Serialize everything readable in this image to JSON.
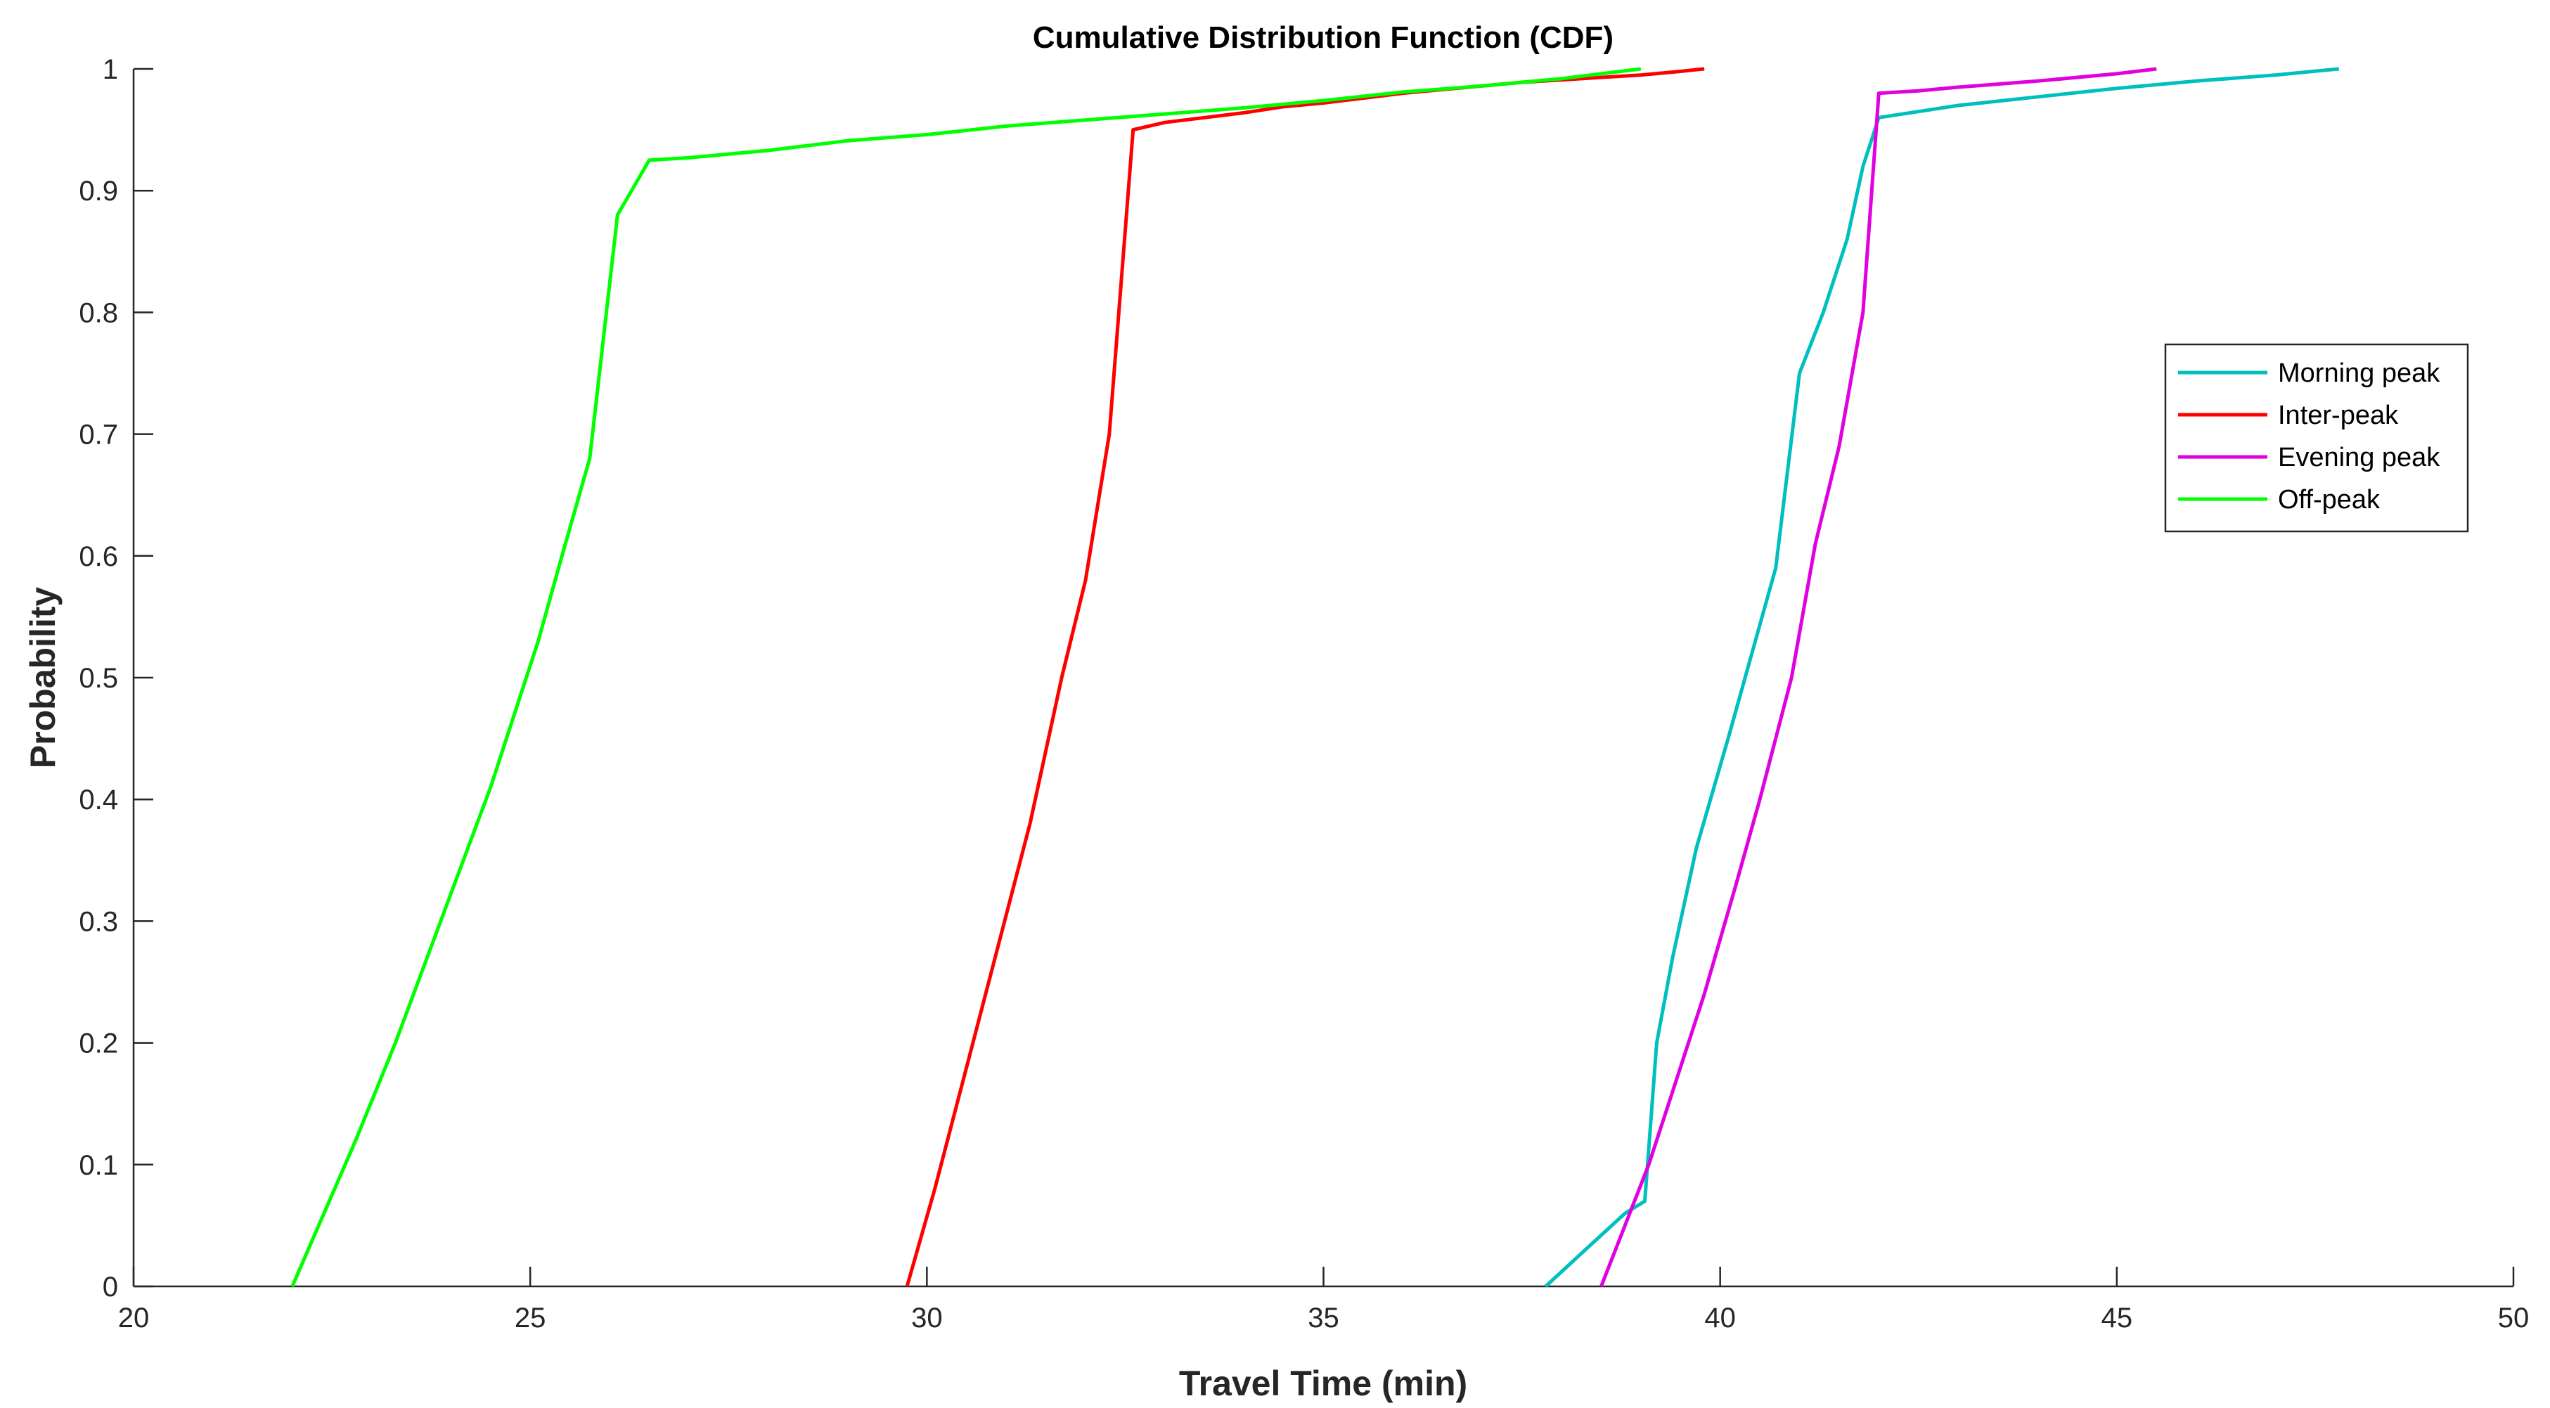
{
  "chart_data": {
    "type": "line",
    "title": "Cumulative Distribution Function (CDF)",
    "xlabel": "Travel Time (min)",
    "ylabel": "Probability",
    "xlim": [
      20,
      50
    ],
    "ylim": [
      0,
      1
    ],
    "xticks": [
      20,
      25,
      30,
      35,
      40,
      45,
      50
    ],
    "xtick_labels": [
      "20",
      "25",
      "30",
      "35",
      "40",
      "45",
      "50"
    ],
    "yticks": [
      0,
      0.1,
      0.2,
      0.3,
      0.4,
      0.5,
      0.6,
      0.7,
      0.8,
      0.9,
      1
    ],
    "ytick_labels": [
      "0",
      "0.1",
      "0.2",
      "0.3",
      "0.4",
      "0.5",
      "0.6",
      "0.7",
      "0.8",
      "0.9",
      "1"
    ],
    "grid": false,
    "legend_position": "right",
    "series": [
      {
        "name": "Morning peak",
        "color": "#00BFBF",
        "points": [
          [
            37.8,
            0
          ],
          [
            38.3,
            0.03
          ],
          [
            38.8,
            0.06
          ],
          [
            39.05,
            0.07
          ],
          [
            39.2,
            0.2
          ],
          [
            39.4,
            0.27
          ],
          [
            39.7,
            0.36
          ],
          [
            40.1,
            0.45
          ],
          [
            40.4,
            0.52
          ],
          [
            40.7,
            0.59
          ],
          [
            41.0,
            0.75
          ],
          [
            41.3,
            0.8
          ],
          [
            41.6,
            0.86
          ],
          [
            41.8,
            0.92
          ],
          [
            42.0,
            0.96
          ],
          [
            43.0,
            0.97
          ],
          [
            44.0,
            0.977
          ],
          [
            45.0,
            0.984
          ],
          [
            46.0,
            0.99
          ],
          [
            47.0,
            0.995
          ],
          [
            47.8,
            1.0
          ]
        ]
      },
      {
        "name": "Inter-peak",
        "color": "#FF0000",
        "points": [
          [
            29.75,
            0
          ],
          [
            30.1,
            0.08
          ],
          [
            30.5,
            0.18
          ],
          [
            30.9,
            0.28
          ],
          [
            31.3,
            0.38
          ],
          [
            31.7,
            0.5
          ],
          [
            32.0,
            0.58
          ],
          [
            32.3,
            0.7
          ],
          [
            32.6,
            0.95
          ],
          [
            33.0,
            0.956
          ],
          [
            33.5,
            0.96
          ],
          [
            34.0,
            0.964
          ],
          [
            34.5,
            0.969
          ],
          [
            35.0,
            0.972
          ],
          [
            35.5,
            0.976
          ],
          [
            36.0,
            0.98
          ],
          [
            36.5,
            0.983
          ],
          [
            37.0,
            0.986
          ],
          [
            37.5,
            0.989
          ],
          [
            38.0,
            0.991
          ],
          [
            38.5,
            0.993
          ],
          [
            39.0,
            0.995
          ],
          [
            39.5,
            0.998
          ],
          [
            39.8,
            1.0
          ]
        ]
      },
      {
        "name": "Evening peak",
        "color": "#E000E0",
        "points": [
          [
            38.5,
            0
          ],
          [
            38.8,
            0.05
          ],
          [
            39.1,
            0.1
          ],
          [
            39.4,
            0.16
          ],
          [
            39.8,
            0.24
          ],
          [
            40.2,
            0.33
          ],
          [
            40.5,
            0.4
          ],
          [
            40.9,
            0.5
          ],
          [
            41.2,
            0.61
          ],
          [
            41.5,
            0.69
          ],
          [
            41.8,
            0.8
          ],
          [
            42.0,
            0.98
          ],
          [
            42.5,
            0.982
          ],
          [
            43.0,
            0.985
          ],
          [
            44.0,
            0.99
          ],
          [
            45.0,
            0.996
          ],
          [
            45.5,
            1.0
          ]
        ]
      },
      {
        "name": "Off-peak",
        "color": "#00FF00",
        "points": [
          [
            22.0,
            0
          ],
          [
            22.4,
            0.06
          ],
          [
            22.8,
            0.12
          ],
          [
            23.3,
            0.2
          ],
          [
            23.7,
            0.27
          ],
          [
            24.1,
            0.34
          ],
          [
            24.5,
            0.41
          ],
          [
            24.8,
            0.47
          ],
          [
            25.1,
            0.53
          ],
          [
            25.4,
            0.6
          ],
          [
            25.75,
            0.68
          ],
          [
            26.1,
            0.88
          ],
          [
            26.5,
            0.925
          ],
          [
            27.0,
            0.927
          ],
          [
            28.0,
            0.933
          ],
          [
            29.0,
            0.941
          ],
          [
            30.0,
            0.946
          ],
          [
            31.0,
            0.953
          ],
          [
            32.0,
            0.958
          ],
          [
            33.0,
            0.963
          ],
          [
            34.0,
            0.968
          ],
          [
            35.0,
            0.974
          ],
          [
            36.0,
            0.981
          ],
          [
            37.0,
            0.986
          ],
          [
            38.0,
            0.992
          ],
          [
            39.0,
            1.0
          ]
        ]
      }
    ]
  }
}
